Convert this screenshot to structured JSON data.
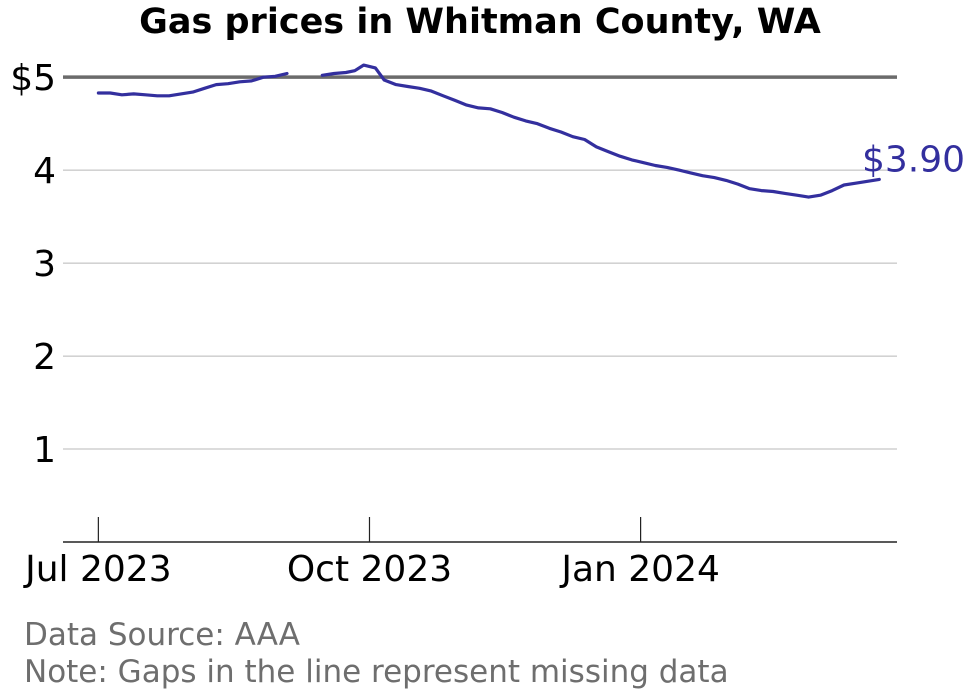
{
  "chart_data": {
    "type": "line",
    "title": "Gas prices in Whitman County, WA",
    "xlabel": "",
    "ylabel": "",
    "x_ticks": [
      {
        "date": "2023-07-01",
        "label": "Jul 2023"
      },
      {
        "date": "2023-10-01",
        "label": "Oct 2023"
      },
      {
        "date": "2024-01-01",
        "label": "Jan 2024"
      }
    ],
    "y_ticks": [
      {
        "value": 1,
        "label": "1"
      },
      {
        "value": 2,
        "label": "2"
      },
      {
        "value": 3,
        "label": "3"
      },
      {
        "value": 4,
        "label": "4"
      },
      {
        "value": 5,
        "label": "$5"
      }
    ],
    "xlim": [
      "2023-06-19",
      "2024-03-28"
    ],
    "ylim": [
      0,
      5.4
    ],
    "grid": "horizontal",
    "reference_line": {
      "value": 5
    },
    "last_value_label": "$3.90",
    "series": [
      {
        "color": "#332f9e",
        "segments": [
          [
            [
              "2023-07-01",
              4.83
            ],
            [
              "2023-07-05",
              4.83
            ],
            [
              "2023-07-09",
              4.81
            ],
            [
              "2023-07-13",
              4.82
            ],
            [
              "2023-07-17",
              4.81
            ],
            [
              "2023-07-21",
              4.8
            ],
            [
              "2023-07-25",
              4.8
            ],
            [
              "2023-07-29",
              4.82
            ],
            [
              "2023-08-02",
              4.84
            ],
            [
              "2023-08-06",
              4.88
            ],
            [
              "2023-08-10",
              4.92
            ],
            [
              "2023-08-14",
              4.93
            ],
            [
              "2023-08-18",
              4.95
            ],
            [
              "2023-08-22",
              4.96
            ],
            [
              "2023-08-26",
              5.0
            ],
            [
              "2023-08-30",
              5.01
            ],
            [
              "2023-09-03",
              5.04
            ]
          ],
          [
            [
              "2023-09-15",
              5.02
            ],
            [
              "2023-09-19",
              5.04
            ],
            [
              "2023-09-23",
              5.05
            ],
            [
              "2023-09-26",
              5.07
            ],
            [
              "2023-09-29",
              5.13
            ],
            [
              "2023-10-03",
              5.1
            ],
            [
              "2023-10-06",
              4.97
            ],
            [
              "2023-10-10",
              4.92
            ],
            [
              "2023-10-14",
              4.9
            ],
            [
              "2023-10-18",
              4.88
            ],
            [
              "2023-10-22",
              4.85
            ],
            [
              "2023-10-26",
              4.8
            ],
            [
              "2023-10-30",
              4.75
            ],
            [
              "2023-11-03",
              4.7
            ],
            [
              "2023-11-07",
              4.67
            ],
            [
              "2023-11-11",
              4.66
            ],
            [
              "2023-11-15",
              4.62
            ],
            [
              "2023-11-19",
              4.57
            ],
            [
              "2023-11-23",
              4.53
            ],
            [
              "2023-11-27",
              4.5
            ],
            [
              "2023-12-01",
              4.45
            ],
            [
              "2023-12-05",
              4.41
            ],
            [
              "2023-12-09",
              4.36
            ],
            [
              "2023-12-13",
              4.33
            ],
            [
              "2023-12-17",
              4.25
            ],
            [
              "2023-12-21",
              4.2
            ],
            [
              "2023-12-25",
              4.15
            ],
            [
              "2023-12-29",
              4.11
            ],
            [
              "2024-01-02",
              4.08
            ],
            [
              "2024-01-06",
              4.05
            ],
            [
              "2024-01-10",
              4.03
            ],
            [
              "2024-01-14",
              4.0
            ],
            [
              "2024-01-18",
              3.97
            ],
            [
              "2024-01-22",
              3.94
            ],
            [
              "2024-01-26",
              3.92
            ],
            [
              "2024-01-30",
              3.89
            ],
            [
              "2024-02-03",
              3.85
            ],
            [
              "2024-02-07",
              3.8
            ],
            [
              "2024-02-11",
              3.78
            ],
            [
              "2024-02-15",
              3.77
            ],
            [
              "2024-02-19",
              3.75
            ],
            [
              "2024-02-23",
              3.73
            ],
            [
              "2024-02-27",
              3.71
            ],
            [
              "2024-03-02",
              3.73
            ],
            [
              "2024-03-06",
              3.78
            ],
            [
              "2024-03-10",
              3.84
            ],
            [
              "2024-03-14",
              3.86
            ],
            [
              "2024-03-18",
              3.88
            ],
            [
              "2024-03-22",
              3.9
            ]
          ]
        ]
      }
    ]
  },
  "footer": {
    "source": "Data Source: AAA",
    "note": "Note: Gaps in the line represent missing data"
  }
}
